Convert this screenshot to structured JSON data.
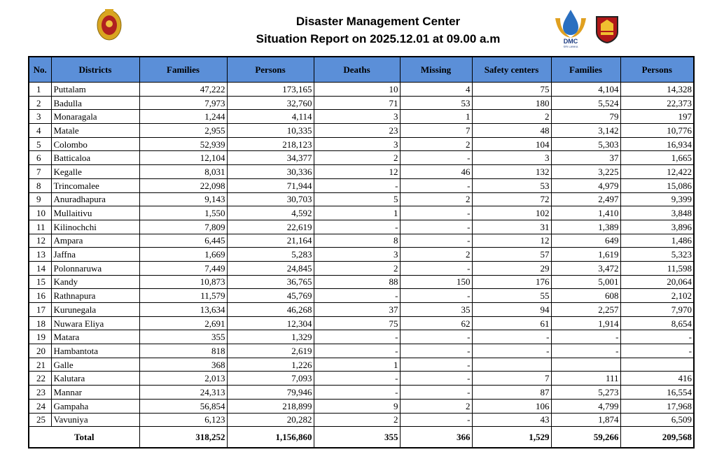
{
  "header": {
    "title": "Disaster Management Center",
    "subtitle": "Situation Report on 2025.12.01 at 09.00 a.m",
    "logo_text": "DMC",
    "logo_subtext": "SRI LANKA"
  },
  "table": {
    "columns": [
      "No.",
      "Districts",
      "Families",
      "Persons",
      "Deaths",
      "Missing",
      "Safety centers",
      "Families",
      "Persons"
    ],
    "rows": [
      [
        "1",
        "Puttalam",
        "47,222",
        "173,165",
        "10",
        "4",
        "75",
        "4,104",
        "14,328"
      ],
      [
        "2",
        "Badulla",
        "7,973",
        "32,760",
        "71",
        "53",
        "180",
        "5,524",
        "22,373"
      ],
      [
        "3",
        "Monaragala",
        "1,244",
        "4,114",
        "3",
        "1",
        "2",
        "79",
        "197"
      ],
      [
        "4",
        "Matale",
        "2,955",
        "10,335",
        "23",
        "7",
        "48",
        "3,142",
        "10,776"
      ],
      [
        "5",
        "Colombo",
        "52,939",
        "218,123",
        "3",
        "2",
        "104",
        "5,303",
        "16,934"
      ],
      [
        "6",
        "Batticaloa",
        "12,104",
        "34,377",
        "2",
        "-",
        "3",
        "37",
        "1,665"
      ],
      [
        "7",
        "Kegalle",
        "8,031",
        "30,336",
        "12",
        "46",
        "132",
        "3,225",
        "12,422"
      ],
      [
        "8",
        "Trincomalee",
        "22,098",
        "71,944",
        "-",
        "-",
        "53",
        "4,979",
        "15,086"
      ],
      [
        "9",
        "Anuradhapura",
        "9,143",
        "30,703",
        "5",
        "2",
        "72",
        "2,497",
        "9,399"
      ],
      [
        "10",
        "Mullaitivu",
        "1,550",
        "4,592",
        "1",
        "-",
        "102",
        "1,410",
        "3,848"
      ],
      [
        "11",
        "Kilinochchi",
        "7,809",
        "22,619",
        "-",
        "-",
        "31",
        "1,389",
        "3,896"
      ],
      [
        "12",
        "Ampara",
        "6,445",
        "21,164",
        "8",
        "-",
        "12",
        "649",
        "1,486"
      ],
      [
        "13",
        "Jaffna",
        "1,669",
        "5,283",
        "3",
        "2",
        "57",
        "1,619",
        "5,323"
      ],
      [
        "14",
        "Polonnaruwa",
        "7,449",
        "24,845",
        "2",
        "-",
        "29",
        "3,472",
        "11,598"
      ],
      [
        "15",
        "Kandy",
        "10,873",
        "36,765",
        "88",
        "150",
        "176",
        "5,001",
        "20,064"
      ],
      [
        "16",
        "Rathnapura",
        "11,579",
        "45,769",
        "-",
        "-",
        "55",
        "608",
        "2,102"
      ],
      [
        "17",
        "Kurunegala",
        "13,634",
        "46,268",
        "37",
        "35",
        "94",
        "2,257",
        "7,970"
      ],
      [
        "18",
        "Nuwara Eliya",
        "2,691",
        "12,304",
        "75",
        "62",
        "61",
        "1,914",
        "8,654"
      ],
      [
        "19",
        "Matara",
        "355",
        "1,329",
        "-",
        "-",
        "-",
        "-",
        "-"
      ],
      [
        "20",
        "Hambantota",
        "818",
        "2,619",
        "-",
        "-",
        "-",
        "-",
        "-"
      ],
      [
        "21",
        "Galle",
        "368",
        "1,226",
        "1",
        "-",
        null,
        null,
        null
      ],
      [
        "22",
        "Kalutara",
        "2,013",
        "7,093",
        "-",
        "-",
        "7",
        "111",
        "416"
      ],
      [
        "23",
        "Mannar",
        "24,313",
        "79,946",
        "-",
        "-",
        "87",
        "5,273",
        "16,554"
      ],
      [
        "24",
        "Gampaha",
        "56,854",
        "218,899",
        "9",
        "2",
        "106",
        "4,799",
        "17,968"
      ],
      [
        "25",
        "Vavuniya",
        "6,123",
        "20,282",
        "2",
        "-",
        "43",
        "1,874",
        "6,509"
      ]
    ],
    "total": [
      "Total",
      "318,252",
      "1,156,860",
      "355",
      "366",
      "1,529",
      "59,266",
      "209,568"
    ]
  }
}
